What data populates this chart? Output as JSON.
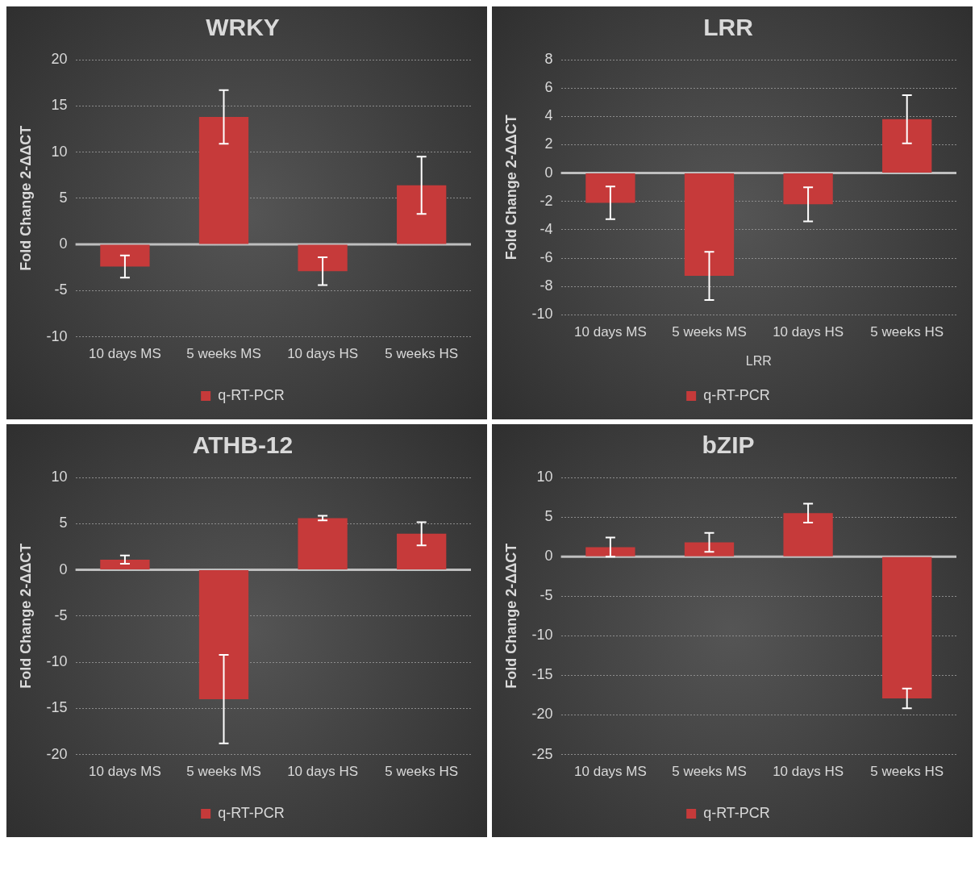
{
  "chart_data": [
    {
      "type": "bar",
      "title": "WRKY",
      "ylabel": "Fold Change 2-ΔΔCT",
      "categories": [
        "10 days MS",
        "5 weeks MS",
        "10 days HS",
        "5 weeks HS"
      ],
      "series": [
        {
          "name": "q-RT-PCR",
          "color": "#c63a3a",
          "values": [
            -2.4,
            13.8,
            -2.9,
            6.4
          ],
          "errors": [
            1.2,
            2.9,
            1.5,
            3.1
          ]
        }
      ],
      "ref_lines": [
        {
          "axis": "y",
          "value": 0,
          "color": "#bfbfbf"
        }
      ],
      "ylim": [
        -10,
        20
      ],
      "yticks": [
        -10,
        -5,
        0,
        5,
        10,
        15,
        20
      ],
      "grid": "y",
      "legend": "bottom"
    },
    {
      "type": "bar",
      "title": "LRR",
      "ylabel": "Fold Change 2-ΔΔCT",
      "xlabel": "LRR",
      "categories": [
        "10 days MS",
        "5 weeks MS",
        "10 days HS",
        "5 weeks HS"
      ],
      "series": [
        {
          "name": "q-RT-PCR",
          "color": "#c63a3a",
          "values": [
            -2.1,
            -7.25,
            -2.2,
            3.8
          ],
          "errors": [
            1.15,
            1.7,
            1.2,
            1.7
          ]
        }
      ],
      "ref_lines": [
        {
          "axis": "y",
          "value": 0,
          "color": "#bfbfbf"
        }
      ],
      "ylim": [
        -10,
        8
      ],
      "yticks": [
        -10,
        -8,
        -6,
        -4,
        -2,
        0,
        2,
        4,
        6,
        8
      ],
      "grid": "y",
      "legend": "bottom"
    },
    {
      "type": "bar",
      "title": "ATHB-12",
      "ylabel": "Fold Change 2-ΔΔCT",
      "categories": [
        "10 days MS",
        "5 weeks MS",
        "10 days HS",
        "5 weeks HS"
      ],
      "series": [
        {
          "name": "q-RT-PCR",
          "color": "#c63a3a",
          "values": [
            1.1,
            -14.0,
            5.6,
            3.9
          ],
          "errors": [
            0.45,
            4.8,
            0.25,
            1.25
          ]
        }
      ],
      "ref_lines": [
        {
          "axis": "y",
          "value": 0,
          "color": "#bfbfbf"
        }
      ],
      "ylim": [
        -20,
        10
      ],
      "yticks": [
        -20,
        -15,
        -10,
        -5,
        0,
        5,
        10
      ],
      "grid": "y",
      "legend": "bottom"
    },
    {
      "type": "bar",
      "title": "bZIP",
      "ylabel": "Fold Change 2-ΔΔCT",
      "categories": [
        "10 days MS",
        "5 weeks MS",
        "10 days HS",
        "5 weeks HS"
      ],
      "series": [
        {
          "name": "q-RT-PCR",
          "color": "#c63a3a",
          "values": [
            1.2,
            1.8,
            5.5,
            -17.9
          ],
          "errors": [
            1.2,
            1.2,
            1.2,
            1.25
          ]
        }
      ],
      "ref_lines": [
        {
          "axis": "y",
          "value": 0,
          "color": "#bfbfbf"
        }
      ],
      "ylim": [
        -25,
        10
      ],
      "yticks": [
        -25,
        -20,
        -15,
        -10,
        -5,
        0,
        5,
        10
      ],
      "grid": "y",
      "legend": "bottom"
    }
  ]
}
